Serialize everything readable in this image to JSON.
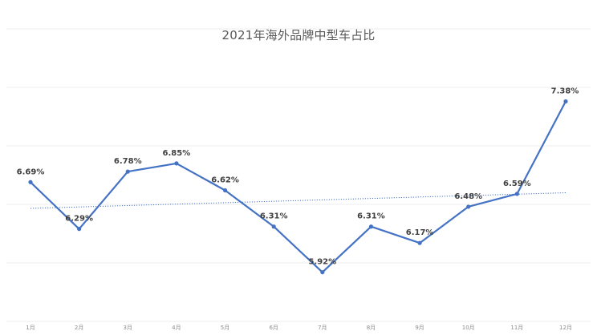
{
  "chart_data": {
    "type": "line",
    "title": "2021年海外品牌中型车占比",
    "categories": [
      "1月",
      "2月",
      "3月",
      "4月",
      "5月",
      "6月",
      "7月",
      "8月",
      "9月",
      "10月",
      "11月",
      "12月"
    ],
    "series": [
      {
        "values": [
          6.69,
          6.29,
          6.78,
          6.85,
          6.62,
          6.31,
          5.92,
          6.31,
          6.17,
          6.48,
          6.59,
          7.38
        ],
        "labels": [
          "6.69%",
          "6.29%",
          "6.78%",
          "6.85%",
          "6.62%",
          "6.31%",
          "5.92%",
          "6.31%",
          "6.17%",
          "6.48%",
          "6.59%",
          "7.38%"
        ],
        "color": "#4472c4"
      }
    ],
    "trendline": {
      "type": "linear",
      "style": "dotted",
      "color": "#4472c4"
    },
    "ylim": [
      5.5,
      8.0
    ],
    "ytick_step": 0.5,
    "xlabel": "",
    "ylabel": "",
    "grid": true,
    "legend": "none"
  }
}
